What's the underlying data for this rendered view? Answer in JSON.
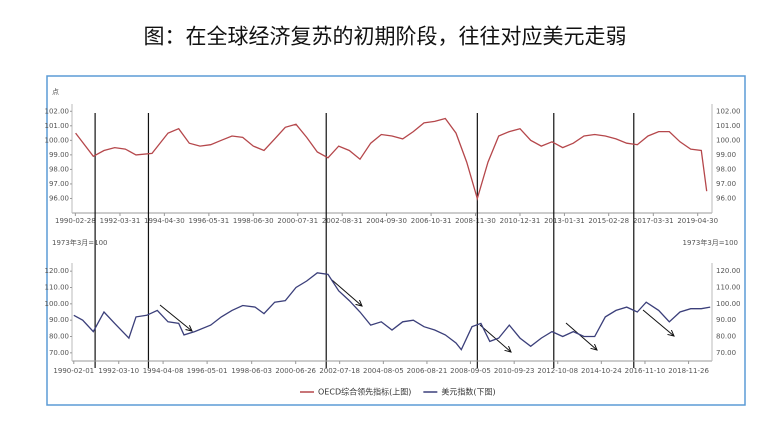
{
  "title": "图：在全球经济复苏的初期阶段，往往对应美元走弱",
  "chart_data": [
    {
      "type": "line",
      "unit_label": "点",
      "x": [
        "1990-03",
        "1991-01",
        "1991-07",
        "1992-01",
        "1992-07",
        "1993-01",
        "1993-10",
        "1994-07",
        "1995-01",
        "1995-07",
        "1996-01",
        "1996-07",
        "1997-01",
        "1997-07",
        "1998-01",
        "1998-07",
        "1999-01",
        "1999-07",
        "2000-01",
        "2000-07",
        "2001-01",
        "2001-07",
        "2002-01",
        "2002-07",
        "2003-01",
        "2003-07",
        "2004-01",
        "2004-07",
        "2005-01",
        "2005-07",
        "2006-01",
        "2006-07",
        "2007-01",
        "2007-07",
        "2008-01",
        "2008-07",
        "2009-01",
        "2009-07",
        "2010-01",
        "2010-07",
        "2011-01",
        "2011-07",
        "2012-01",
        "2012-07",
        "2013-01",
        "2013-07",
        "2014-01",
        "2014-07",
        "2015-01",
        "2015-07",
        "2016-01",
        "2016-07",
        "2017-01",
        "2017-07",
        "2018-01",
        "2018-07",
        "2019-01",
        "2019-07",
        "2019-10"
      ],
      "series": [
        {
          "name": "OECD综合领先指标(上图)",
          "color": "#b5474b",
          "values": [
            100.5,
            98.9,
            99.3,
            99.5,
            99.4,
            99.0,
            99.1,
            100.5,
            100.8,
            99.8,
            99.6,
            99.7,
            100.0,
            100.3,
            100.2,
            99.6,
            99.3,
            100.1,
            100.9,
            101.1,
            100.2,
            99.2,
            98.8,
            99.6,
            99.3,
            98.7,
            99.8,
            100.4,
            100.3,
            100.1,
            100.6,
            101.2,
            101.3,
            101.5,
            100.5,
            98.5,
            96.0,
            98.5,
            100.3,
            100.6,
            100.8,
            100.0,
            99.6,
            99.9,
            99.5,
            99.8,
            100.3,
            100.4,
            100.3,
            100.1,
            99.8,
            99.7,
            100.3,
            100.6,
            100.6,
            99.9,
            99.4,
            99.3,
            96.5
          ]
        }
      ],
      "xlim": [
        "1990-01",
        "2020-01"
      ],
      "xticks": [
        "1990-02-28",
        "1992-03-31",
        "1994-04-30",
        "1996-05-31",
        "1998-06-30",
        "2000-07-31",
        "2002-08-31",
        "2004-09-30",
        "2006-10-31",
        "2008-11-30",
        "2010-12-31",
        "2013-01-31",
        "2015-02-28",
        "2017-03-31",
        "2019-04-30"
      ],
      "ylim": [
        95,
        102.5
      ],
      "yticks": [
        {
          "value": 96,
          "label": "96.00"
        },
        {
          "value": 97,
          "label": "97.00"
        },
        {
          "value": 98,
          "label": "98.00"
        },
        {
          "value": 99,
          "label": "99.00"
        },
        {
          "value": 100,
          "label": "100.00"
        },
        {
          "value": 101,
          "label": "101.00"
        },
        {
          "value": 102,
          "label": "102.00"
        }
      ],
      "vlines": [
        "1991-02",
        "1993-08",
        "2001-12",
        "2009-01",
        "2012-08",
        "2016-05"
      ],
      "grid": false
    },
    {
      "type": "line",
      "unit_label": "1973年3月=100",
      "x": [
        "1990-02",
        "1990-07",
        "1991-01",
        "1991-07",
        "1992-01",
        "1992-09",
        "1993-01",
        "1993-07",
        "1994-01",
        "1994-07",
        "1995-01",
        "1995-04",
        "1995-10",
        "1996-07",
        "1997-01",
        "1997-07",
        "1998-01",
        "1998-08",
        "1999-01",
        "1999-07",
        "2000-01",
        "2000-07",
        "2001-01",
        "2001-07",
        "2002-01",
        "2002-07",
        "2003-01",
        "2003-07",
        "2004-01",
        "2004-07",
        "2005-01",
        "2005-07",
        "2006-01",
        "2006-07",
        "2007-01",
        "2007-07",
        "2008-01",
        "2008-04",
        "2008-10",
        "2009-03",
        "2009-08",
        "2010-01",
        "2010-07",
        "2011-01",
        "2011-07",
        "2012-01",
        "2012-07",
        "2013-01",
        "2013-07",
        "2014-01",
        "2014-07",
        "2015-01",
        "2015-07",
        "2016-01",
        "2016-07",
        "2016-12",
        "2017-07",
        "2018-01",
        "2018-07",
        "2019-01",
        "2019-07",
        "2019-12"
      ],
      "series": [
        {
          "name": "美元指数(下图)",
          "color": "#3b3f7a",
          "values": [
            93,
            90,
            83,
            95,
            88,
            79,
            92,
            93,
            96,
            89,
            88,
            81,
            83,
            87,
            92,
            96,
            99,
            98,
            94,
            101,
            102,
            110,
            114,
            119,
            118,
            108,
            102,
            95,
            87,
            89,
            84,
            89,
            90,
            86,
            84,
            81,
            76,
            72,
            86,
            88,
            77,
            79,
            87,
            79,
            74,
            79,
            83,
            80,
            83,
            80,
            80,
            92,
            96,
            98,
            95,
            101,
            96,
            89,
            95,
            97,
            97,
            98
          ]
        }
      ],
      "xlim": [
        "1990-01",
        "2020-01"
      ],
      "xticks": [
        "1990-02-01",
        "1992-03-10",
        "1994-04-08",
        "1996-05-01",
        "1998-06-03",
        "2000-06-26",
        "2002-07-18",
        "2004-08-05",
        "2006-08-21",
        "2008-09-05",
        "2010-09-23",
        "2012-10-08",
        "2014-10-24",
        "2016-11-10",
        "2018-11-26"
      ],
      "ylim": [
        65,
        125
      ],
      "yticks": [
        {
          "value": 70,
          "label": "70.00"
        },
        {
          "value": 80,
          "label": "80.00"
        },
        {
          "value": 90,
          "label": "90.00"
        },
        {
          "value": 100,
          "label": "100.00"
        },
        {
          "value": 110,
          "label": "110.00"
        },
        {
          "value": 120,
          "label": "120.00"
        }
      ],
      "grid": false
    }
  ]
}
